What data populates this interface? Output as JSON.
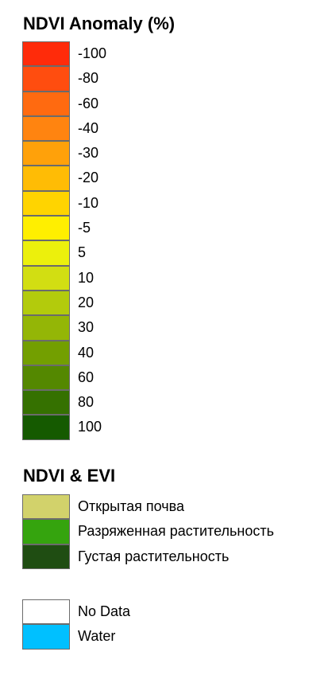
{
  "ndvi_anomaly": {
    "title": "NDVI Anomaly (%)",
    "items": [
      {
        "label": "-100",
        "color": "#ff2b0a"
      },
      {
        "label": "-80",
        "color": "#ff4d0f"
      },
      {
        "label": "-60",
        "color": "#ff6a10"
      },
      {
        "label": "-40",
        "color": "#ff8410"
      },
      {
        "label": "-30",
        "color": "#ffa10a"
      },
      {
        "label": "-20",
        "color": "#ffbc05"
      },
      {
        "label": "-10",
        "color": "#ffd400"
      },
      {
        "label": "-5",
        "color": "#ffef00"
      },
      {
        "label": "5",
        "color": "#ecf00c"
      },
      {
        "label": "10",
        "color": "#d2de12"
      },
      {
        "label": "20",
        "color": "#b3cb0c"
      },
      {
        "label": "30",
        "color": "#94b606"
      },
      {
        "label": "40",
        "color": "#739f00"
      },
      {
        "label": "60",
        "color": "#548800"
      },
      {
        "label": "80",
        "color": "#357100"
      },
      {
        "label": "100",
        "color": "#155a00"
      }
    ]
  },
  "ndvi_evi": {
    "title": "NDVI & EVI",
    "items": [
      {
        "label": "Открытая почва",
        "color": "#d2d26b"
      },
      {
        "label": "Разряженная растительность",
        "color": "#35a40e"
      },
      {
        "label": "Густая растительность",
        "color": "#1f4d12"
      }
    ]
  },
  "other": {
    "items": [
      {
        "label": "No Data",
        "color": "#ffffff"
      },
      {
        "label": "Water",
        "color": "#00c0ff"
      }
    ]
  }
}
